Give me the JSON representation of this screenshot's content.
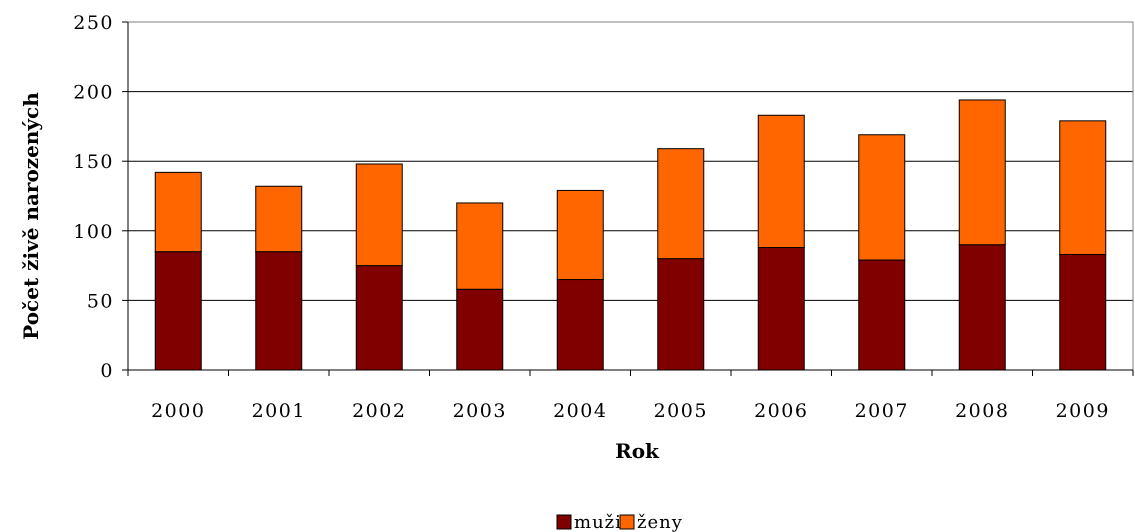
{
  "chart_data": {
    "type": "bar",
    "stacked": true,
    "xlabel": "Rok",
    "ylabel": "Počet živě narozených",
    "ylim": [
      0,
      250
    ],
    "yticks": [
      "0",
      "50",
      "100",
      "150",
      "200",
      "250"
    ],
    "grid": true,
    "legend_position": "bottom",
    "categories": [
      "2000",
      "2001",
      "2002",
      "2003",
      "2004",
      "2005",
      "2006",
      "2007",
      "2008",
      "2009"
    ],
    "series": [
      {
        "name": "muži",
        "color": "#800000",
        "values": [
          85,
          85,
          75,
          58,
          65,
          80,
          88,
          79,
          90,
          83
        ]
      },
      {
        "name": "ženy",
        "color": "#ff6600",
        "values": [
          57,
          47,
          73,
          62,
          64,
          79,
          95,
          90,
          104,
          96
        ]
      }
    ]
  }
}
